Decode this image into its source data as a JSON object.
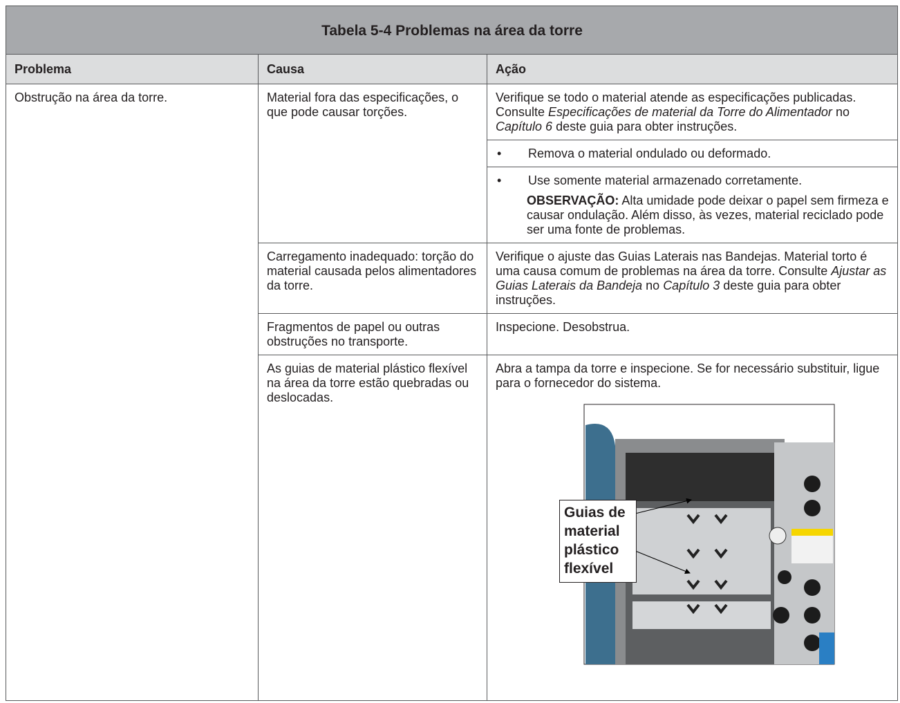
{
  "header": {
    "title": "Tabela 5-4 Problemas na área da torre"
  },
  "table": {
    "headers": [
      "Problema",
      "Causa",
      "Ação"
    ],
    "problem": "Obstrução na área da torre.",
    "bullet": "•",
    "rows": [
      {
        "cause": "Material fora das especificações, o que pode causar torções.",
        "action": [
          [
            {
              "runs": [
                "Verifique se todo o material atende as especificações publicadas. Consulte ",
                {
                  "i": "Especificações de material da Torre do Alimentador"
                },
                " no ",
                {
                  "i": "Capítulo 6"
                },
                " deste guia para obter instruções."
              ]
            }
          ],
          [
            {
              "item": "Remova o material ondulado ou deformado."
            }
          ],
          [
            {
              "item": "Use somente material armazenado corretamente."
            },
            {
              "note_label": "OBSERVAÇÃO:",
              "note": "Alta umidade pode deixar o papel sem firmeza e causar ondulação. Além disso, às vezes, material reciclado pode ser uma fonte de problemas."
            }
          ]
        ]
      },
      {
        "cause": "Carregamento inadequado: torção do material causada pelos alimentadores da torre.",
        "action": [
          [
            {
              "runs": [
                "Verifique o ajuste das Guias Laterais nas Bandejas. Material torto é uma causa comum de problemas na área da torre. Consulte ",
                {
                  "i": "Ajustar as Guias Laterais da Bandeja"
                },
                " no ",
                {
                  "i": "Capítulo 3"
                },
                " deste guia para obter instruções."
              ]
            }
          ]
        ]
      },
      {
        "cause": "Fragmentos de papel ou outras obstruções no transporte.",
        "action": [
          [
            {
              "runs": [
                "Inspecione. Desobstrua."
              ]
            }
          ]
        ]
      },
      {
        "cause": "As guias de material plástico flexível na área da torre estão quebradas ou deslocadas.",
        "action": [
          [
            {
              "runs": [
                "Abra a tampa da torre e inspecione. Se for necessário substituir, ligue para o fornecedor do sistema."
              ]
            },
            {
              "callout": [
                "Guias de",
                "material",
                "plástico",
                "flexível"
              ]
            }
          ]
        ]
      }
    ]
  }
}
